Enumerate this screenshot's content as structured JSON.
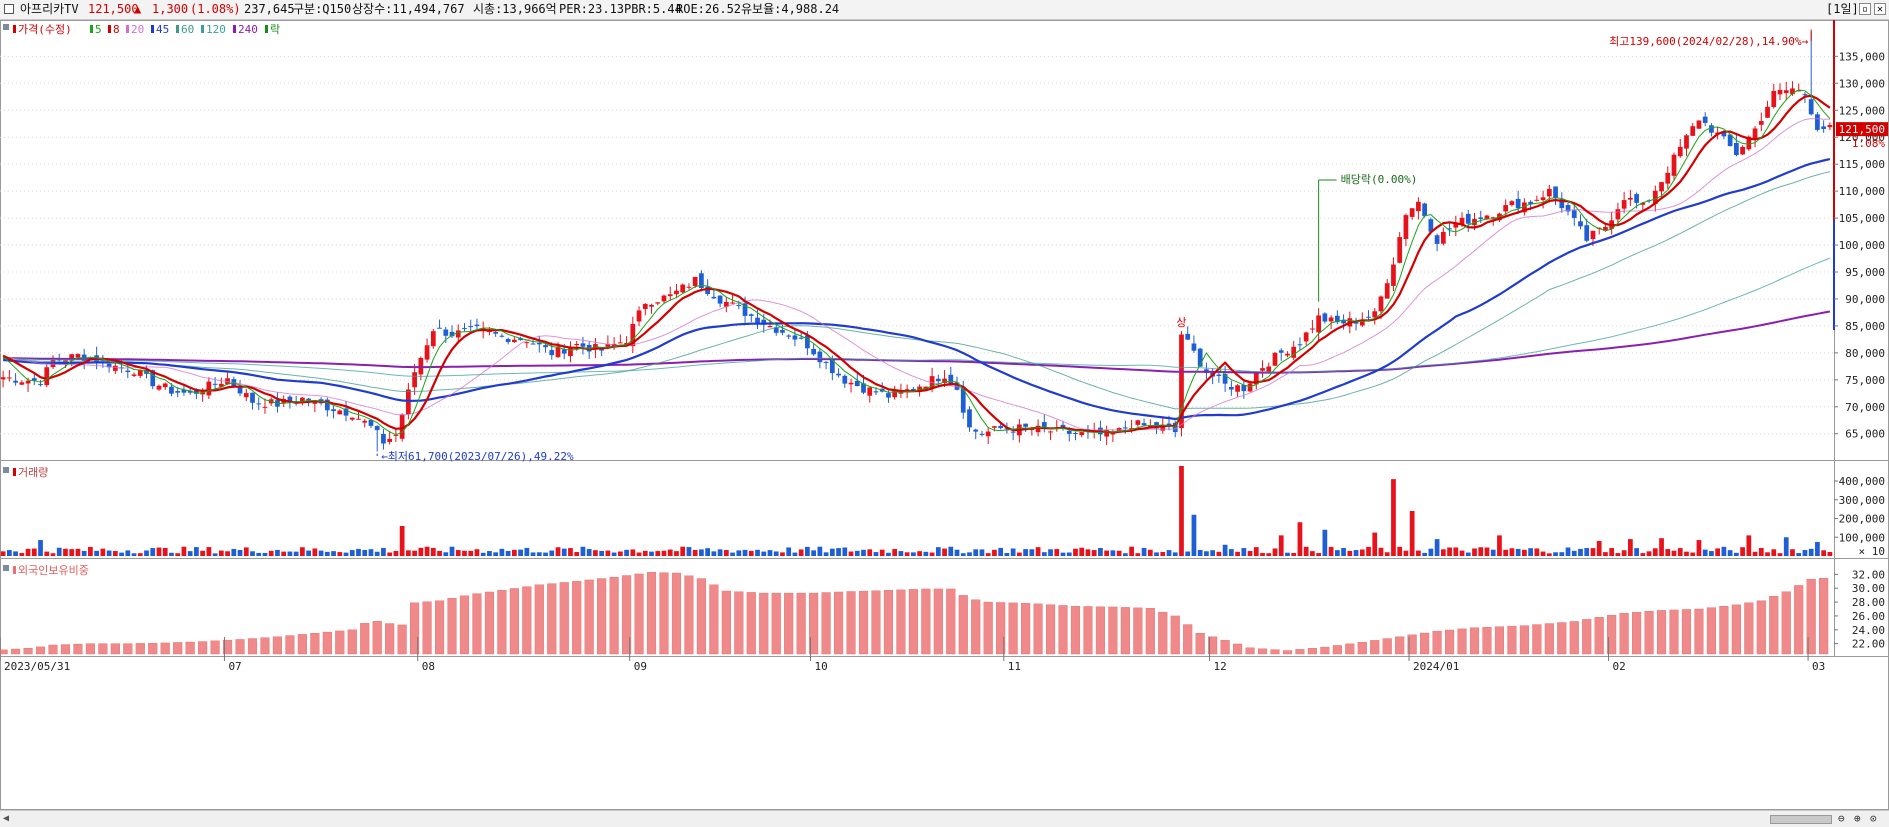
{
  "header": {
    "name": "아프리카TV",
    "price": "121,500",
    "arrow": "▲",
    "change": "1,300",
    "change_pct": "(1.08%)",
    "volume": "237,645",
    "market": "구분:Q150",
    "shares": "상장수:11,494,767",
    "mcap": "시총:13,966억",
    "per": "PER:23.13",
    "pbr": "PBR:5.44",
    "roe": "ROE:26.52",
    "float": "유보율:4,988.24",
    "period": "[1일]"
  },
  "legends": {
    "price": [
      {
        "label": "가격(수정)",
        "color": "#d40000"
      },
      {
        "label": "5",
        "color": "#1aa51a"
      },
      {
        "label": "8",
        "color": "#d40000"
      },
      {
        "label": "20",
        "color": "#d070d0"
      },
      {
        "label": "45",
        "color": "#1f3bd0"
      },
      {
        "label": "60",
        "color": "#3a9a8a"
      },
      {
        "label": "120",
        "color": "#3aa0a0"
      },
      {
        "label": "240",
        "color": "#8a1fb0"
      },
      {
        "label": "락",
        "color": "#1a8a1a"
      }
    ],
    "volume": "거래량",
    "foreign": "외국인보유비중"
  },
  "annotations": {
    "high": "최고139,600(2024/02/28),14.90%→",
    "low": "←최저61,700(2023/07/26),49.22%",
    "dividend": "배당락(0.00%)",
    "sang": "상",
    "current_price": "121,500",
    "current_pct": "1.08%",
    "volume_unit": "× 10"
  },
  "chart_data": [
    {
      "type": "candlestick",
      "title": "아프리카TV",
      "y_ticks": [
        "135,000",
        "130,000",
        "125,000",
        "120,000",
        "115,000",
        "110,000",
        "105,000",
        "100,000",
        "95,000",
        "90,000",
        "85,000",
        "80,000",
        "75,000",
        "70,000",
        "65,000"
      ],
      "ylim": [
        60500,
        141000
      ],
      "x_labels": [
        "2023/05/31",
        "07",
        "08",
        "09",
        "10",
        "11",
        "12",
        "2024/01",
        "02",
        "03"
      ],
      "x_label_index": [
        0,
        36,
        67,
        101,
        130,
        161,
        194,
        226,
        258,
        290
      ],
      "n_bars": 294,
      "closes": [
        [
          0,
          75500
        ],
        [
          3,
          75000
        ],
        [
          6,
          74800
        ],
        [
          8,
          78500
        ],
        [
          12,
          79500
        ],
        [
          15,
          78800
        ],
        [
          18,
          77500
        ],
        [
          21,
          76800
        ],
        [
          24,
          74500
        ],
        [
          27,
          73000
        ],
        [
          30,
          72300
        ],
        [
          33,
          73800
        ],
        [
          36,
          75200
        ],
        [
          40,
          71000
        ],
        [
          44,
          70500
        ],
        [
          48,
          71500
        ],
        [
          52,
          70000
        ],
        [
          56,
          68800
        ],
        [
          59,
          66200
        ],
        [
          61,
          63500
        ],
        [
          63,
          64800
        ],
        [
          66,
          76500
        ],
        [
          69,
          84500
        ],
        [
          72,
          83500
        ],
        [
          76,
          84200
        ],
        [
          80,
          83000
        ],
        [
          84,
          82500
        ],
        [
          88,
          80000
        ],
        [
          92,
          81500
        ],
        [
          96,
          80500
        ],
        [
          100,
          82500
        ],
        [
          103,
          89500
        ],
        [
          107,
          90500
        ],
        [
          111,
          93500
        ],
        [
          115,
          90000
        ],
        [
          119,
          87500
        ],
        [
          123,
          85000
        ],
        [
          126,
          83500
        ],
        [
          129,
          81500
        ],
        [
          132,
          78000
        ],
        [
          135,
          75000
        ],
        [
          138,
          73500
        ],
        [
          142,
          72000
        ],
        [
          145,
          73000
        ],
        [
          148,
          74500
        ],
        [
          151,
          76000
        ],
        [
          153,
          73500
        ],
        [
          155,
          66000
        ],
        [
          157,
          65000
        ],
        [
          160,
          66000
        ],
        [
          164,
          66000
        ],
        [
          168,
          65500
        ],
        [
          172,
          65000
        ],
        [
          175,
          64800
        ],
        [
          178,
          64800
        ],
        [
          181,
          66800
        ],
        [
          184,
          66300
        ],
        [
          187,
          66000
        ],
        [
          188,
          65300
        ],
        [
          189,
          83500
        ],
        [
          191,
          80000
        ],
        [
          193,
          76500
        ],
        [
          196,
          74000
        ],
        [
          199,
          73500
        ],
        [
          202,
          77500
        ],
        [
          205,
          80000
        ],
        [
          208,
          82000
        ],
        [
          211,
          86500
        ],
        [
          214,
          85500
        ],
        [
          217,
          86000
        ],
        [
          220,
          87000
        ],
        [
          223,
          97000
        ],
        [
          225,
          106000
        ],
        [
          227,
          108000
        ],
        [
          230,
          101000
        ],
        [
          233,
          104000
        ],
        [
          236,
          105000
        ],
        [
          239,
          106000
        ],
        [
          242,
          107500
        ],
        [
          245,
          108000
        ],
        [
          248,
          110000
        ],
        [
          251,
          106000
        ],
        [
          254,
          101000
        ],
        [
          257,
          103500
        ],
        [
          260,
          109000
        ],
        [
          263,
          107000
        ],
        [
          266,
          112000
        ],
        [
          269,
          118000
        ],
        [
          272,
          123500
        ],
        [
          275,
          120500
        ],
        [
          278,
          117000
        ],
        [
          281,
          121500
        ],
        [
          284,
          128000
        ],
        [
          287,
          129000
        ],
        [
          289,
          128000
        ],
        [
          291,
          122000
        ],
        [
          293,
          121500
        ]
      ],
      "series": [
        {
          "name": "5",
          "color": "#1aa51a"
        },
        {
          "name": "8",
          "color": "#d40000"
        },
        {
          "name": "20",
          "color": "#d070d0"
        },
        {
          "name": "45",
          "color": "#1f3bd0"
        },
        {
          "name": "60",
          "color": "#3a9a8a"
        },
        {
          "name": "120",
          "color": "#3aa0a0"
        },
        {
          "name": "240",
          "color": "#8a1fb0"
        }
      ],
      "highlights": {
        "high": {
          "index": 290,
          "value": 139600
        },
        "low": {
          "index": 60,
          "value": 61700
        },
        "dividend_index": 211
      }
    },
    {
      "type": "bar",
      "title": "거래량",
      "y_ticks": [
        "400,000",
        "300,000",
        "200,000",
        "100,000"
      ],
      "ylim": [
        0,
        480000
      ],
      "spikes": [
        [
          6,
          85000
        ],
        [
          64,
          160000
        ],
        [
          189,
          480000
        ],
        [
          191,
          220000
        ],
        [
          196,
          60000
        ],
        [
          205,
          110000
        ],
        [
          208,
          180000
        ],
        [
          212,
          140000
        ],
        [
          220,
          125000
        ],
        [
          223,
          410000
        ],
        [
          226,
          240000
        ],
        [
          230,
          90000
        ],
        [
          240,
          110000
        ],
        [
          256,
          80000
        ],
        [
          261,
          90000
        ],
        [
          266,
          95000
        ],
        [
          272,
          85000
        ],
        [
          280,
          110000
        ],
        [
          286,
          100000
        ],
        [
          291,
          75000
        ]
      ],
      "base": 40000
    },
    {
      "type": "bar",
      "title": "외국인보유비중",
      "y_ticks": [
        "32.00",
        "30.00",
        "28.00",
        "26.00",
        "24.00",
        "22.00"
      ],
      "ylim": [
        20.5,
        33.5
      ],
      "points": [
        [
          0,
          21.1
        ],
        [
          5,
          21.4
        ],
        [
          8,
          21.8
        ],
        [
          14,
          22.0
        ],
        [
          20,
          22.0
        ],
        [
          26,
          22.1
        ],
        [
          32,
          22.3
        ],
        [
          38,
          22.6
        ],
        [
          44,
          23.0
        ],
        [
          50,
          23.5
        ],
        [
          56,
          24.0
        ],
        [
          59,
          25.4
        ],
        [
          62,
          24.9
        ],
        [
          64,
          24.7
        ],
        [
          66,
          27.9
        ],
        [
          70,
          28.2
        ],
        [
          75,
          29.1
        ],
        [
          80,
          29.7
        ],
        [
          86,
          30.5
        ],
        [
          92,
          31.0
        ],
        [
          98,
          31.6
        ],
        [
          104,
          32.3
        ],
        [
          108,
          32.2
        ],
        [
          112,
          31.4
        ],
        [
          116,
          29.6
        ],
        [
          122,
          29.3
        ],
        [
          130,
          29.3
        ],
        [
          135,
          29.5
        ],
        [
          142,
          29.7
        ],
        [
          148,
          29.9
        ],
        [
          152,
          29.9
        ],
        [
          155,
          28.5
        ],
        [
          158,
          28.0
        ],
        [
          165,
          27.8
        ],
        [
          172,
          27.4
        ],
        [
          178,
          27.3
        ],
        [
          184,
          27.1
        ],
        [
          188,
          26.0
        ],
        [
          192,
          23.5
        ],
        [
          196,
          22.5
        ],
        [
          200,
          21.4
        ],
        [
          206,
          21.0
        ],
        [
          212,
          21.5
        ],
        [
          218,
          22.2
        ],
        [
          224,
          23.0
        ],
        [
          230,
          23.8
        ],
        [
          236,
          24.3
        ],
        [
          244,
          24.6
        ],
        [
          252,
          25.2
        ],
        [
          260,
          26.4
        ],
        [
          266,
          26.8
        ],
        [
          272,
          27.0
        ],
        [
          278,
          27.6
        ],
        [
          282,
          28.2
        ],
        [
          286,
          29.5
        ],
        [
          290,
          31.3
        ],
        [
          293,
          31.5
        ]
      ]
    }
  ]
}
